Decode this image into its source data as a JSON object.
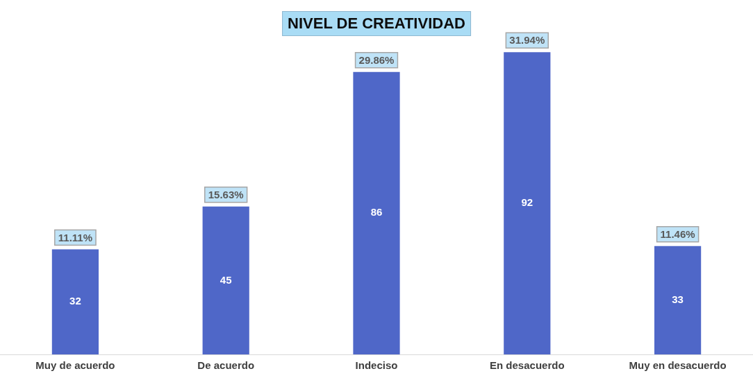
{
  "chart_data": {
    "type": "bar",
    "title": "NIVEL DE CREATIVIDAD",
    "categories": [
      "Muy de acuerdo",
      "De acuerdo",
      "Indeciso",
      "En desacuerdo",
      "Muy en desacuerdo"
    ],
    "values": [
      32,
      45,
      86,
      92,
      33
    ],
    "color": "#4f67c8",
    "data_labels": true,
    "legend": false,
    "grid": false,
    "annotations": [
      {
        "text": "11.11%",
        "x": "Muy de acuerdo",
        "y": 32
      },
      {
        "text": "15.63%",
        "x": "De acuerdo",
        "y": 45
      },
      {
        "text": "29.86%",
        "x": "Indeciso",
        "y": 86
      },
      {
        "text": "31.94%",
        "x": "En desacuerdo",
        "y": 92
      },
      {
        "text": "11.46%",
        "x": "Muy en desacuerdo",
        "y": 33
      }
    ]
  }
}
